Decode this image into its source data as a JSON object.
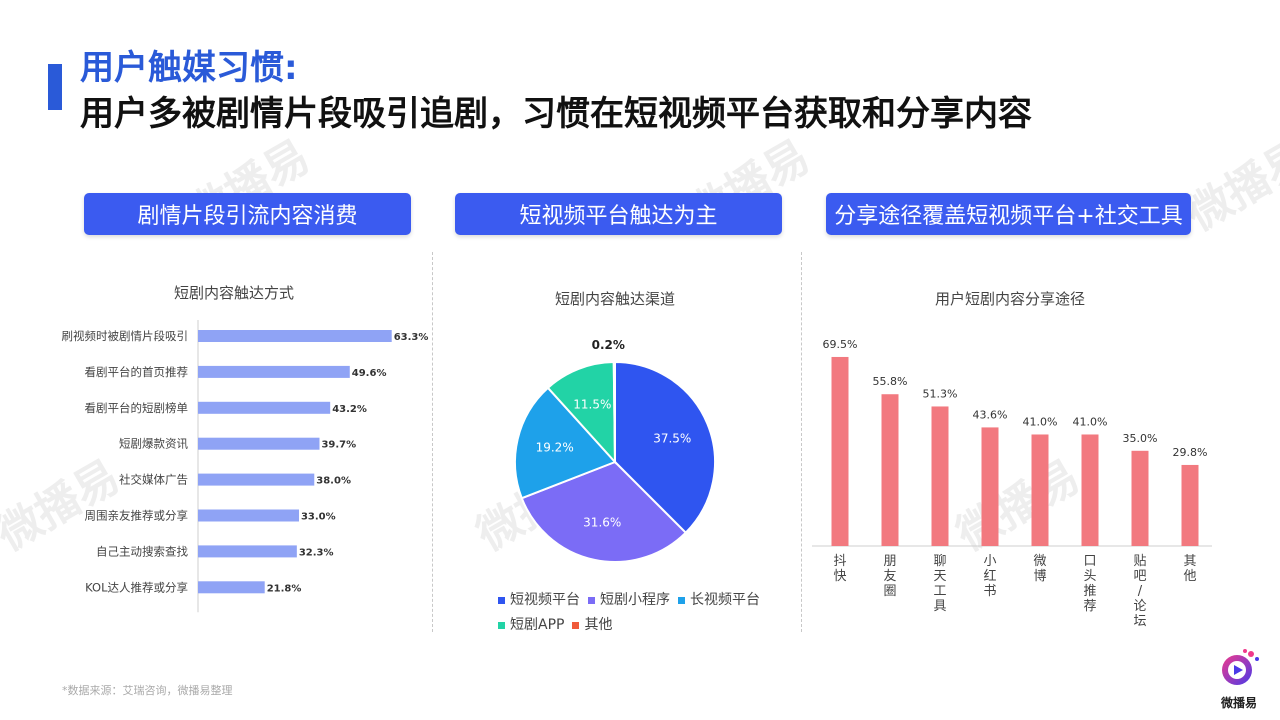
{
  "header": {
    "title_line1": "用户触媒习惯:",
    "title_line2": "用户多被剧情片段吸引追剧，习惯在短视频平台获取和分享内容"
  },
  "panels": [
    {
      "pill": "剧情片段引流内容消费",
      "chart_title": "短剧内容触达方式"
    },
    {
      "pill": "短视频平台触达为主",
      "chart_title": "短剧内容触达渠道"
    },
    {
      "pill": "分享途径覆盖短视频平台+社交工具",
      "chart_title": "用户短剧内容分享途径"
    }
  ],
  "watermark": "微播易",
  "source": "*数据来源：艾瑞咨询，微播易整理",
  "logo": {
    "text": "微播易"
  },
  "colors": {
    "accent": "#2a5ad8",
    "pill": "#3b5bf0",
    "hbar": "#8fa3f5",
    "vbar": "#f2797f"
  },
  "chart_data": [
    {
      "type": "bar",
      "orientation": "horizontal",
      "title": "短剧内容触达方式",
      "categories": [
        "刷视频时被剧情片段吸引",
        "看剧平台的首页推荐",
        "看剧平台的短剧榜单",
        "短剧爆款资讯",
        "社交媒体广告",
        "周围亲友推荐或分享",
        "自己主动搜索查找",
        "KOL达人推荐或分享"
      ],
      "values": [
        63.3,
        49.6,
        43.2,
        39.7,
        38.0,
        33.0,
        32.3,
        21.8
      ],
      "labels": [
        "63.3%",
        "49.6%",
        "43.2%",
        "39.7%",
        "38.0%",
        "33.0%",
        "32.3%",
        "21.8%"
      ],
      "unit": "%"
    },
    {
      "type": "pie",
      "title": "短剧内容触达渠道",
      "slices": [
        {
          "name": "短视频平台",
          "value": 37.5,
          "label": "37.5%",
          "color": "#2f55f0"
        },
        {
          "name": "短剧小程序",
          "value": 31.6,
          "label": "31.6%",
          "color": "#7b6cf6"
        },
        {
          "name": "长视频平台",
          "value": 19.2,
          "label": "19.2%",
          "color": "#1ea1ea"
        },
        {
          "name": "短剧APP",
          "value": 11.5,
          "label": "11.5%",
          "color": "#22d3a6"
        },
        {
          "name": "其他",
          "value": 0.2,
          "label": "0.2%",
          "color": "#f05a3a"
        }
      ],
      "legend": "bottom"
    },
    {
      "type": "bar",
      "orientation": "vertical",
      "title": "用户短剧内容分享途径",
      "categories": [
        "抖快",
        "朋友圈",
        "聊天工具",
        "小红书",
        "微博",
        "口头推荐",
        "贴吧/论坛",
        "其他"
      ],
      "values": [
        69.5,
        55.8,
        51.3,
        43.6,
        41.0,
        41.0,
        35.0,
        29.8
      ],
      "labels": [
        "69.5%",
        "55.8%",
        "51.3%",
        "43.6%",
        "41.0%",
        "41.0%",
        "35.0%",
        "29.8%"
      ],
      "unit": "%"
    }
  ]
}
